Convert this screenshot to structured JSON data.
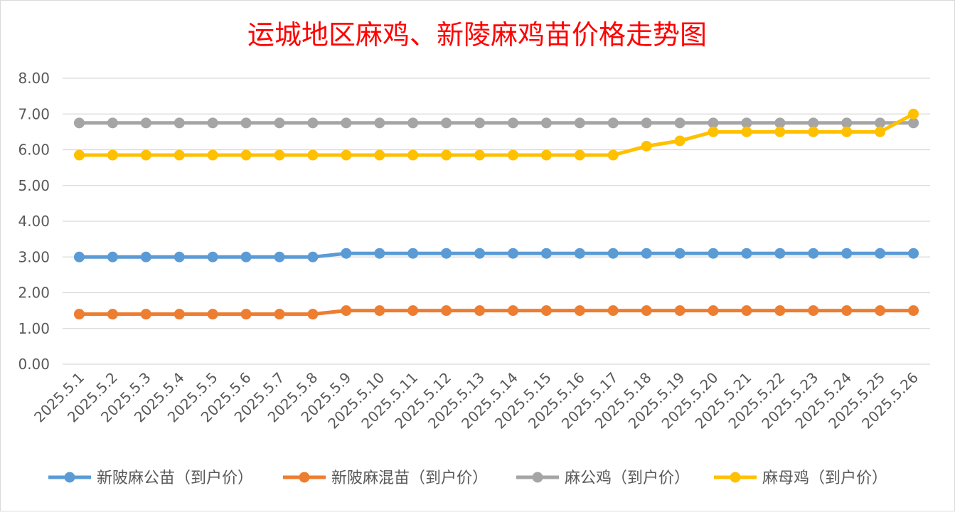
{
  "chart_data": {
    "type": "line",
    "title": "运城地区麻鸡、新陵麻鸡苗价格走势图",
    "xlabel": "",
    "ylabel": "",
    "ylim": [
      0,
      8
    ],
    "yticks": [
      "0.00",
      "1.00",
      "2.00",
      "3.00",
      "4.00",
      "5.00",
      "6.00",
      "7.00",
      "8.00"
    ],
    "grid": true,
    "legend_position": "bottom",
    "title_color": "#ff0000",
    "categories": [
      "2025.5.1",
      "2025.5.2",
      "2025.5.3",
      "2025.5.4",
      "2025.5.5",
      "2025.5.6",
      "2025.5.7",
      "2025.5.8",
      "2025.5.9",
      "2025.5.10",
      "2025.5.11",
      "2025.5.12",
      "2025.5.13",
      "2025.5.14",
      "2025.5.15",
      "2025.5.16",
      "2025.5.17",
      "2025.5.18",
      "2025.5.19",
      "2025.5.20",
      "2025.5.21",
      "2025.5.22",
      "2025.5.23",
      "2025.5.24",
      "2025.5.25",
      "2025.5.26"
    ],
    "series": [
      {
        "name": "新陂麻公苗（到户价）",
        "color": "#5b9bd5",
        "values": [
          3.0,
          3.0,
          3.0,
          3.0,
          3.0,
          3.0,
          3.0,
          3.0,
          3.1,
          3.1,
          3.1,
          3.1,
          3.1,
          3.1,
          3.1,
          3.1,
          3.1,
          3.1,
          3.1,
          3.1,
          3.1,
          3.1,
          3.1,
          3.1,
          3.1,
          3.1
        ]
      },
      {
        "name": "新陂麻混苗（到户价）",
        "color": "#ed7d31",
        "values": [
          1.4,
          1.4,
          1.4,
          1.4,
          1.4,
          1.4,
          1.4,
          1.4,
          1.5,
          1.5,
          1.5,
          1.5,
          1.5,
          1.5,
          1.5,
          1.5,
          1.5,
          1.5,
          1.5,
          1.5,
          1.5,
          1.5,
          1.5,
          1.5,
          1.5,
          1.5
        ]
      },
      {
        "name": "麻公鸡（到户价）",
        "color": "#a5a5a5",
        "values": [
          6.75,
          6.75,
          6.75,
          6.75,
          6.75,
          6.75,
          6.75,
          6.75,
          6.75,
          6.75,
          6.75,
          6.75,
          6.75,
          6.75,
          6.75,
          6.75,
          6.75,
          6.75,
          6.75,
          6.75,
          6.75,
          6.75,
          6.75,
          6.75,
          6.75,
          6.75
        ]
      },
      {
        "name": "麻母鸡（到户价）",
        "color": "#ffc000",
        "values": [
          5.85,
          5.85,
          5.85,
          5.85,
          5.85,
          5.85,
          5.85,
          5.85,
          5.85,
          5.85,
          5.85,
          5.85,
          5.85,
          5.85,
          5.85,
          5.85,
          5.85,
          6.1,
          6.25,
          6.5,
          6.5,
          6.5,
          6.5,
          6.5,
          6.5,
          7.0
        ]
      }
    ]
  }
}
